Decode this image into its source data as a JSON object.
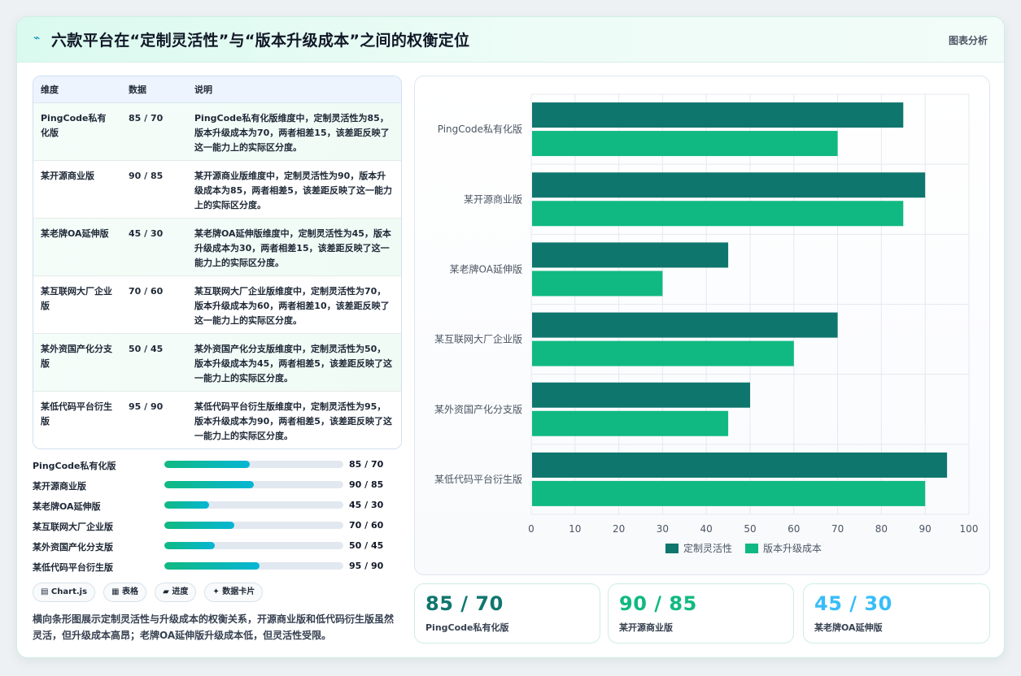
{
  "header": {
    "title": "六款平台在“定制灵活性”与“版本升级成本”之间的权衡定位",
    "tag": "图表分析",
    "icon": "bolt-icon"
  },
  "table": {
    "headers": [
      "维度",
      "数据",
      "说明"
    ],
    "rows": [
      {
        "name": "PingCode私有化版",
        "data": "85 / 70",
        "note": "PingCode私有化版维度中，定制灵活性为85，版本升级成本为70，两者相差15，该差距反映了这一能力上的实际区分度。"
      },
      {
        "name": "某开源商业版",
        "data": "90 / 85",
        "note": "某开源商业版维度中，定制灵活性为90，版本升级成本为85，两者相差5，该差距反映了这一能力上的实际区分度。"
      },
      {
        "name": "某老牌OA延伸版",
        "data": "45 / 30",
        "note": "某老牌OA延伸版维度中，定制灵活性为45，版本升级成本为30，两者相差15，该差距反映了这一能力上的实际区分度。"
      },
      {
        "name": "某互联网大厂企业版",
        "data": "70 / 60",
        "note": "某互联网大厂企业版维度中，定制灵活性为70，版本升级成本为60，两者相差10，该差距反映了这一能力上的实际区分度。"
      },
      {
        "name": "某外资国产化分支版",
        "data": "50 / 45",
        "note": "某外资国产化分支版维度中，定制灵活性为50，版本升级成本为45，两者相差5，该差距反映了这一能力上的实际区分度。"
      },
      {
        "name": "某低代码平台衍生版",
        "data": "95 / 90",
        "note": "某低代码平台衍生版维度中，定制灵活性为95，版本升级成本为90，两者相差5，该差距反映了这一能力上的实际区分度。"
      }
    ]
  },
  "progress": [
    {
      "name": "PingCode私有化版",
      "value": "85 / 70",
      "fraction": 0.475
    },
    {
      "name": "某开源商业版",
      "value": "90 / 85",
      "fraction": 0.5
    },
    {
      "name": "某老牌OA延伸版",
      "value": "45 / 30",
      "fraction": 0.25
    },
    {
      "name": "某互联网大厂企业版",
      "value": "70 / 60",
      "fraction": 0.39
    },
    {
      "name": "某外资国产化分支版",
      "value": "50 / 45",
      "fraction": 0.28
    },
    {
      "name": "某低代码平台衍生版",
      "value": "95 / 90",
      "fraction": 0.53
    }
  ],
  "pills": [
    "▤ Chart.js",
    "▦ 表格",
    "▰ 进度",
    "✦ 数据卡片"
  ],
  "description": "横向条形图展示定制灵活性与升级成本的权衡关系，开源商业版和低代码衍生版虽然灵活，但升级成本高昂；老牌OA延伸版升级成本低，但灵活性受限。",
  "kpis": [
    {
      "value": "85 / 70",
      "label": "PingCode私有化版",
      "color": "#0f766e"
    },
    {
      "value": "90 / 85",
      "label": "某开源商业版",
      "color": "#10b981"
    },
    {
      "value": "45 / 30",
      "label": "某老牌OA延伸版",
      "color": "#38bdf8"
    }
  ],
  "chart_data": {
    "type": "bar",
    "orientation": "horizontal",
    "categories": [
      "PingCode私有化版",
      "某开源商业版",
      "某老牌OA延伸版",
      "某互联网大厂企业版",
      "某外资国产化分支版",
      "某低代码平台衍生版"
    ],
    "series": [
      {
        "name": "定制灵活性",
        "values": [
          85,
          90,
          45,
          70,
          50,
          95
        ],
        "color": "#0f766e"
      },
      {
        "name": "版本升级成本",
        "values": [
          70,
          85,
          30,
          60,
          45,
          90
        ],
        "color": "#10b981"
      }
    ],
    "xlim": [
      0,
      100
    ],
    "xticks": [
      0,
      10,
      20,
      30,
      40,
      50,
      60,
      70,
      80,
      90,
      100
    ],
    "grid": true,
    "legend": "bottom"
  }
}
